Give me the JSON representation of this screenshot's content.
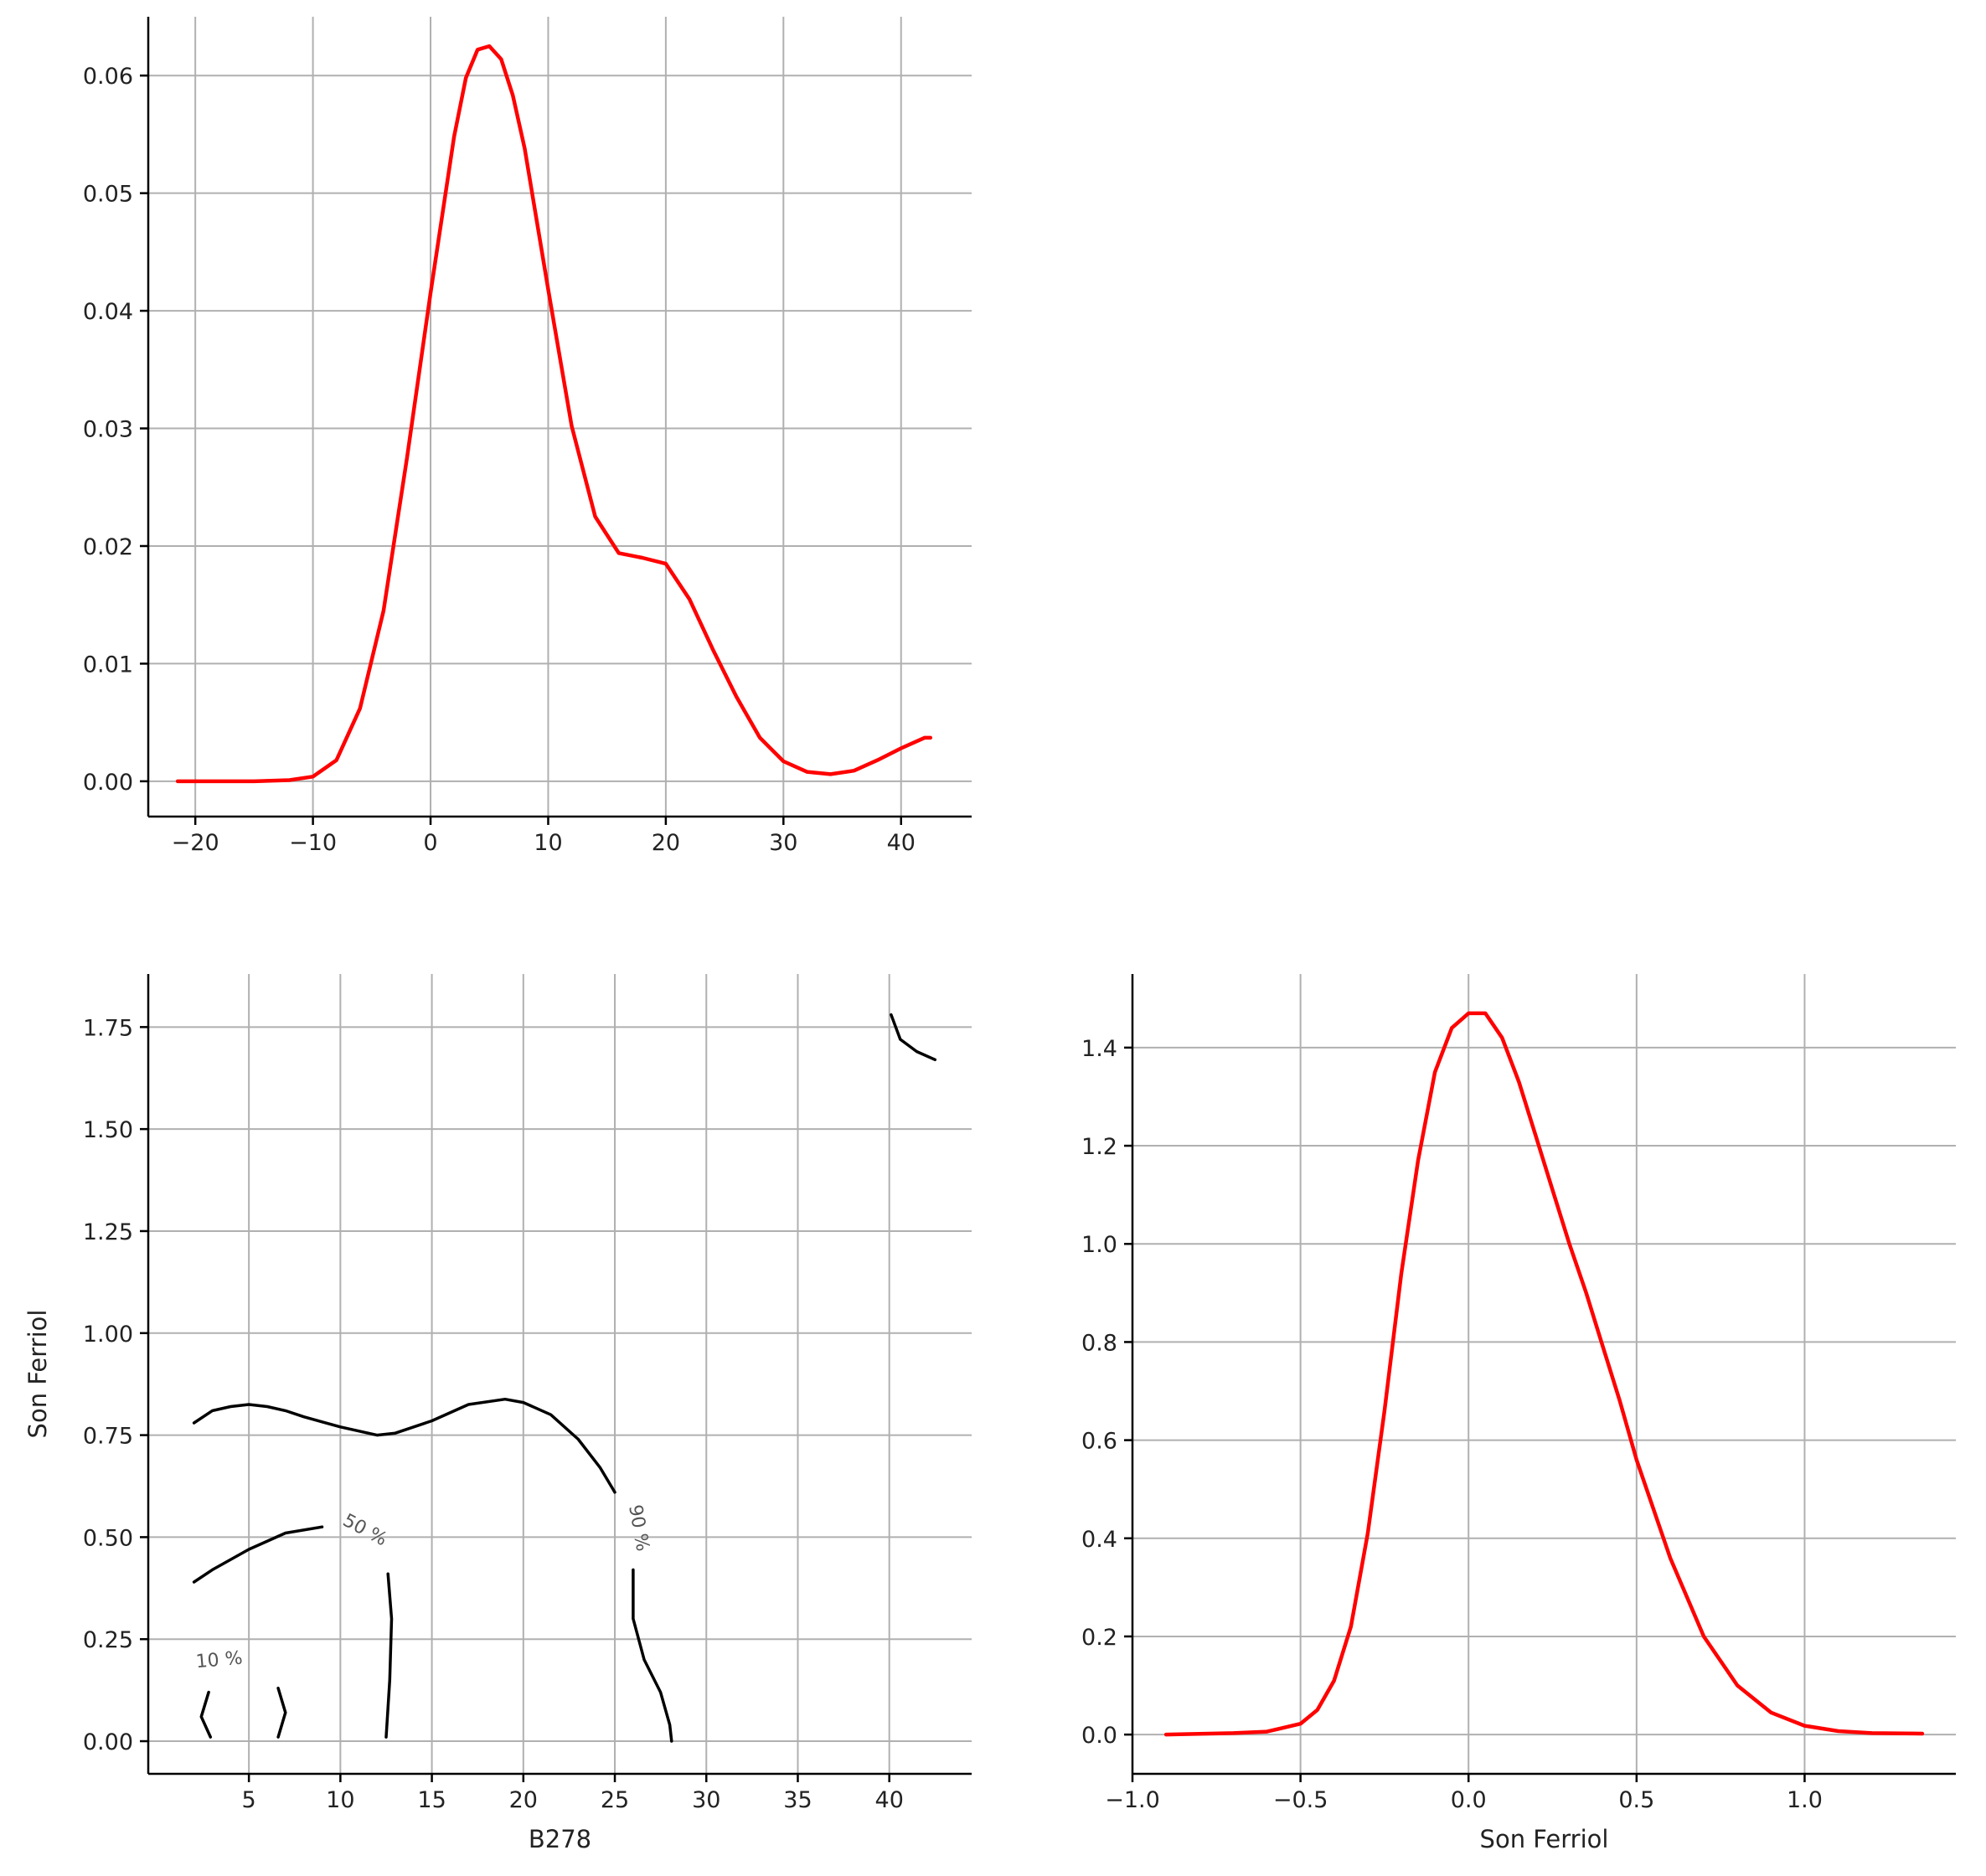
{
  "chart_data": [
    {
      "type": "line",
      "panel": "top-left",
      "title": "",
      "xlabel": "",
      "ylabel": "",
      "xlim": [
        -24,
        46
      ],
      "ylim": [
        -0.003,
        0.065
      ],
      "grid": true,
      "xticks": [
        -20,
        -10,
        0,
        10,
        20,
        30,
        40
      ],
      "xtick_labels": [
        "−20",
        "−10",
        "0",
        "10",
        "20",
        "30",
        "40"
      ],
      "yticks": [
        0.0,
        0.01,
        0.02,
        0.03,
        0.04,
        0.05,
        0.06
      ],
      "ytick_labels": [
        "0.00",
        "0.01",
        "0.02",
        "0.03",
        "0.04",
        "0.05",
        "0.06"
      ],
      "line_color": "#ff0000",
      "series": [
        {
          "x": [
            -21.5,
            -15,
            -12,
            -10,
            -8,
            -6,
            -4,
            -2,
            0,
            2,
            3,
            4,
            5,
            6,
            7,
            8,
            10,
            12,
            14,
            16,
            18,
            20,
            22,
            24,
            26,
            28,
            30,
            32,
            34,
            36,
            38,
            40,
            42,
            42.5
          ],
          "y": [
            0.0,
            0.0,
            0.0001,
            0.0004,
            0.0018,
            0.0062,
            0.0145,
            0.0275,
            0.0415,
            0.0548,
            0.0598,
            0.0622,
            0.0625,
            0.0614,
            0.0583,
            0.0538,
            0.0418,
            0.0302,
            0.0225,
            0.0194,
            0.019,
            0.0185,
            0.0155,
            0.0112,
            0.0072,
            0.0037,
            0.0017,
            0.0008,
            0.0006,
            0.0009,
            0.0018,
            0.0028,
            0.0037,
            0.0037
          ]
        }
      ]
    },
    {
      "type": "contour",
      "panel": "bottom-left",
      "title": "",
      "xlabel": "B278",
      "ylabel": "Son Ferriol",
      "xlim": [
        -0.5,
        44.5
      ],
      "ylim": [
        -0.08,
        1.88
      ],
      "grid": true,
      "xticks": [
        5,
        10,
        15,
        20,
        25,
        30,
        35,
        40
      ],
      "xtick_labels": [
        "5",
        "10",
        "15",
        "20",
        "25",
        "30",
        "35",
        "40"
      ],
      "yticks": [
        0.0,
        0.25,
        0.5,
        0.75,
        1.0,
        1.25,
        1.5,
        1.75
      ],
      "ytick_labels": [
        "0.00",
        "0.25",
        "0.50",
        "0.75",
        "1.00",
        "1.25",
        "1.50",
        "1.75"
      ],
      "line_color": "#000000",
      "contours": [
        {
          "level": "10 %",
          "segments": [
            [
              [
                2.8,
                0.12
              ],
              [
                2.4,
                0.06
              ],
              [
                2.9,
                0.01
              ]
            ],
            [
              [
                6.6,
                0.13
              ],
              [
                7.0,
                0.07
              ],
              [
                6.6,
                0.01
              ]
            ]
          ]
        },
        {
          "level": "50 %",
          "segments": [
            [
              [
                2.0,
                0.39
              ],
              [
                3.0,
                0.42
              ],
              [
                5.0,
                0.47
              ],
              [
                7.0,
                0.51
              ],
              [
                9.0,
                0.525
              ]
            ],
            [
              [
                12.6,
                0.41
              ],
              [
                12.8,
                0.3
              ],
              [
                12.7,
                0.15
              ],
              [
                12.5,
                0.01
              ]
            ]
          ]
        },
        {
          "level": "90 %",
          "segments": [
            [
              [
                2.0,
                0.78
              ],
              [
                3.0,
                0.81
              ],
              [
                4.0,
                0.82
              ],
              [
                5.0,
                0.825
              ],
              [
                6.0,
                0.82
              ],
              [
                7.0,
                0.81
              ],
              [
                8.0,
                0.795
              ],
              [
                10.0,
                0.77
              ],
              [
                12.0,
                0.75
              ],
              [
                13.0,
                0.755
              ],
              [
                15.0,
                0.785
              ],
              [
                17.0,
                0.825
              ],
              [
                19.0,
                0.838
              ],
              [
                20.0,
                0.83
              ],
              [
                21.5,
                0.8
              ],
              [
                23.0,
                0.74
              ],
              [
                24.2,
                0.67
              ],
              [
                25.0,
                0.61
              ]
            ],
            [
              [
                26.0,
                0.42
              ],
              [
                26.0,
                0.3
              ],
              [
                26.6,
                0.2
              ],
              [
                27.5,
                0.12
              ],
              [
                28.0,
                0.04
              ],
              [
                28.1,
                0.0
              ]
            ],
            [
              [
                40.1,
                1.78
              ],
              [
                40.6,
                1.72
              ],
              [
                41.5,
                1.69
              ],
              [
                42.5,
                1.67
              ]
            ]
          ]
        }
      ],
      "contour_labels": [
        {
          "text": "10 %",
          "x": 3.4,
          "y": 0.185,
          "rotation": -5
        },
        {
          "text": "50 %",
          "x": 11.2,
          "y": 0.505,
          "rotation": 28
        },
        {
          "text": "90 %",
          "x": 26.0,
          "y": 0.52,
          "rotation": 80
        }
      ]
    },
    {
      "type": "line",
      "panel": "bottom-right",
      "title": "",
      "xlabel": "Son Ferriol",
      "ylabel": "",
      "xlim": [
        -1.0,
        1.45
      ],
      "ylim": [
        -0.08,
        1.55
      ],
      "grid": true,
      "xticks": [
        -1.0,
        -0.5,
        0.0,
        0.5,
        1.0
      ],
      "xtick_labels": [
        "−1.0",
        "−0.5",
        "0.0",
        "0.5",
        "1.0"
      ],
      "yticks": [
        0.0,
        0.2,
        0.4,
        0.6,
        0.8,
        1.0,
        1.2,
        1.4
      ],
      "ytick_labels": [
        "0.0",
        "0.2",
        "0.4",
        "0.6",
        "0.8",
        "1.0",
        "1.2",
        "1.4"
      ],
      "line_color": "#ff0000",
      "series": [
        {
          "x": [
            -0.9,
            -0.7,
            -0.6,
            -0.5,
            -0.45,
            -0.4,
            -0.35,
            -0.3,
            -0.25,
            -0.2,
            -0.15,
            -0.1,
            -0.05,
            0.0,
            0.05,
            0.1,
            0.15,
            0.2,
            0.25,
            0.3,
            0.35,
            0.4,
            0.45,
            0.5,
            0.6,
            0.7,
            0.8,
            0.9,
            1.0,
            1.1,
            1.2,
            1.35
          ],
          "y": [
            0.0,
            0.003,
            0.006,
            0.022,
            0.05,
            0.11,
            0.22,
            0.41,
            0.66,
            0.94,
            1.17,
            1.35,
            1.44,
            1.47,
            1.47,
            1.42,
            1.33,
            1.22,
            1.11,
            1.0,
            0.9,
            0.79,
            0.68,
            0.56,
            0.36,
            0.2,
            0.1,
            0.045,
            0.018,
            0.007,
            0.003,
            0.002
          ]
        }
      ]
    }
  ]
}
